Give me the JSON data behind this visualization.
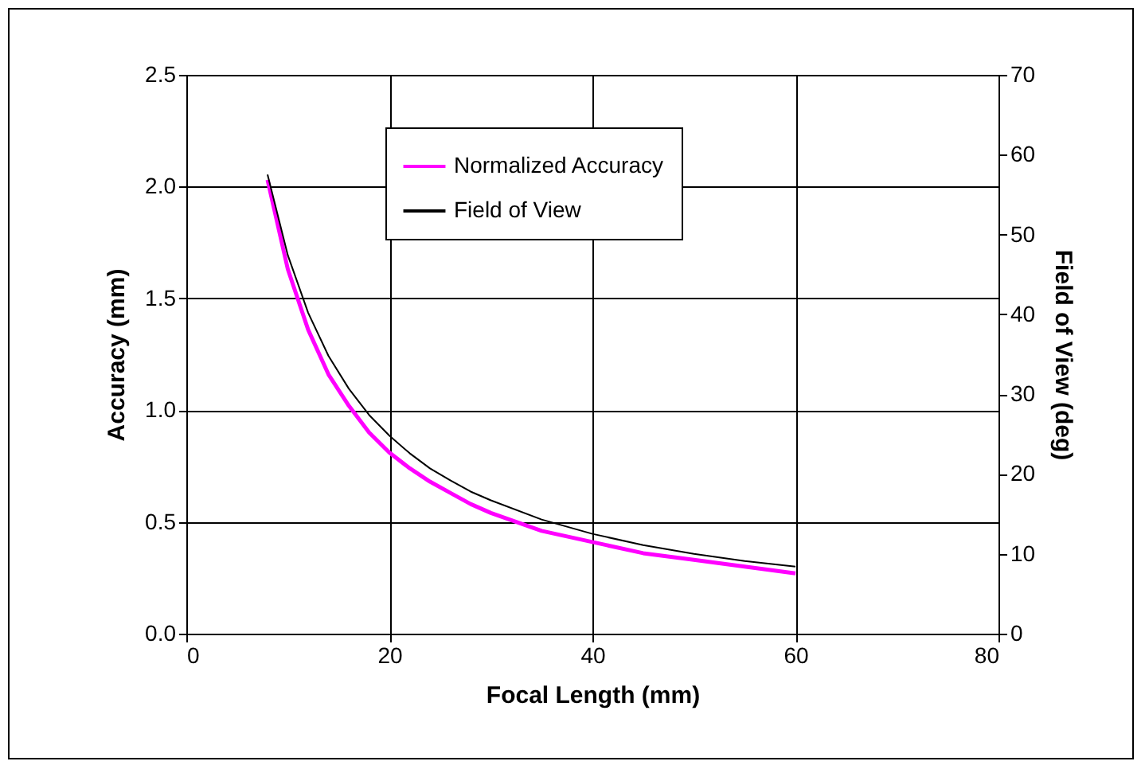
{
  "chart_data": {
    "type": "line",
    "xlabel": "Focal Length (mm)",
    "ylabel": "Accuracy (mm)",
    "y2label": "Field of View (deg)",
    "x": [
      8,
      10,
      12,
      14,
      16,
      18,
      20,
      22,
      24,
      26,
      28,
      30,
      35,
      40,
      45,
      50,
      55,
      60
    ],
    "series": [
      {
        "name": "Normalized Accuracy",
        "color": "#ff00ff",
        "values": [
          2.03,
          1.63,
          1.36,
          1.16,
          1.02,
          0.9,
          0.81,
          0.74,
          0.68,
          0.63,
          0.58,
          0.54,
          0.46,
          0.41,
          0.36,
          0.33,
          0.3,
          0.27
        ]
      },
      {
        "name": "Field of View",
        "color": "#000000",
        "axis": "y2",
        "values": [
          57.5,
          47.4,
          40.2,
          34.8,
          30.7,
          27.4,
          24.8,
          22.6,
          20.7,
          19.2,
          17.8,
          16.7,
          14.3,
          12.5,
          11.1,
          10.0,
          9.1,
          8.4
        ]
      }
    ],
    "xlim": [
      0,
      80
    ],
    "xticks": [
      0,
      20,
      40,
      60,
      80
    ],
    "ylim": [
      0,
      2.5
    ],
    "yticks": [
      {
        "value": 0,
        "label": "0.0"
      },
      {
        "value": 0.5,
        "label": "0.5"
      },
      {
        "value": 1,
        "label": "1.0"
      },
      {
        "value": 1.5,
        "label": "1.5"
      },
      {
        "value": 2,
        "label": "2.0"
      },
      {
        "value": 2.5,
        "label": "2.5"
      }
    ],
    "y2lim": [
      0,
      70
    ],
    "y2ticks": [
      0,
      10,
      20,
      30,
      40,
      50,
      60,
      70
    ],
    "grid": true,
    "legend": "top",
    "marker": "none",
    "line_style": "solid"
  }
}
